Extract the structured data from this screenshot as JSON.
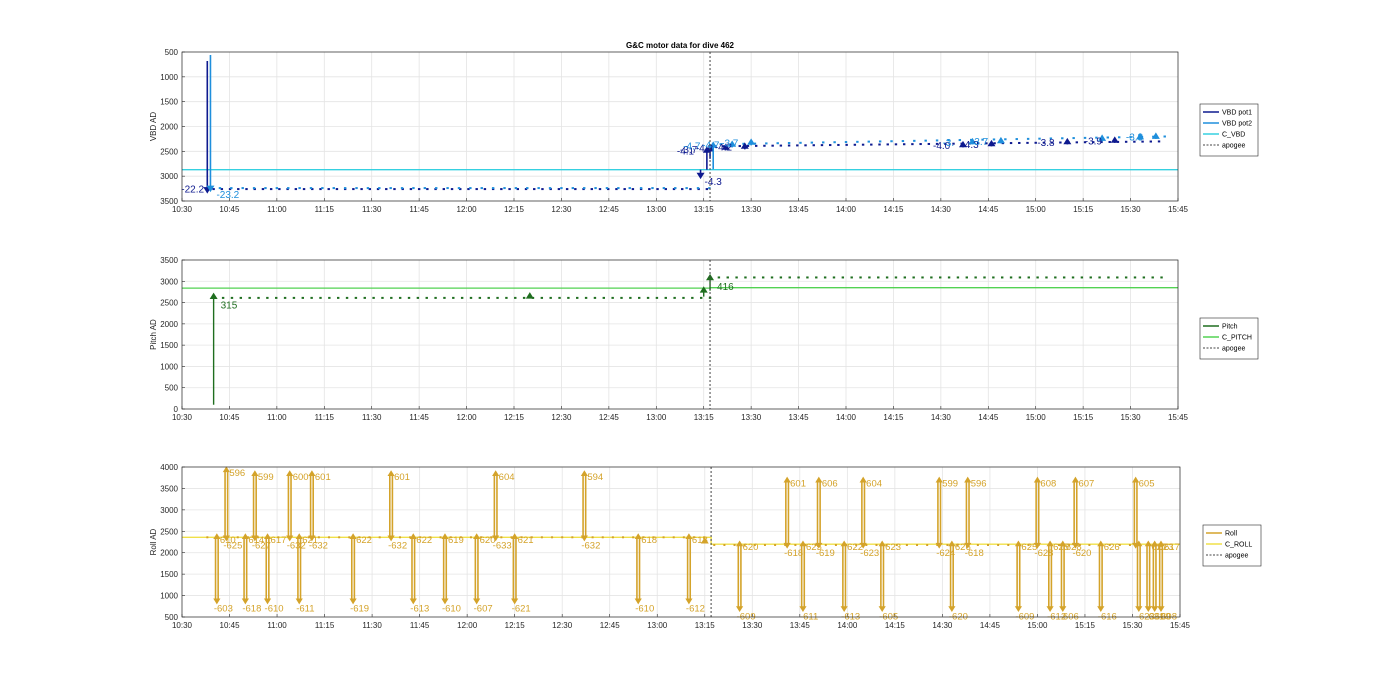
{
  "title": "G&C motor data for dive 462",
  "colors": {
    "vbd_pot1": "#0e1a8f",
    "vbd_pot2": "#1f8fdc",
    "c_vbd": "#35d0e0",
    "pitch": "#1f6e1f",
    "c_pitch": "#52d252",
    "roll": "#d4a32a",
    "c_roll": "#f0e048",
    "apogee": "#444444",
    "grid": "#e4e4e4"
  },
  "chart_data": [
    {
      "type": "line",
      "ylabel": "VBD AD",
      "xlim": [
        "10:30",
        "15:45"
      ],
      "ylim": [
        500,
        3500
      ],
      "y_reversed": true,
      "x_ticks": [
        "10:30",
        "10:45",
        "11:00",
        "11:15",
        "11:30",
        "11:45",
        "12:00",
        "12:15",
        "12:30",
        "12:45",
        "13:00",
        "13:15",
        "13:30",
        "13:45",
        "14:00",
        "14:15",
        "14:30",
        "14:45",
        "15:00",
        "15:15",
        "15:30",
        "15:45"
      ],
      "y_ticks": [
        500,
        1000,
        1500,
        2000,
        2500,
        3000,
        3500
      ],
      "legend": [
        "VBD pot1",
        "VBD pot2",
        "C_VBD",
        "apogee"
      ],
      "apogee": "13:17",
      "c_vbd": [
        {
          "x": "10:30",
          "y": 2870
        },
        {
          "x": "15:45",
          "y": 2870
        }
      ],
      "pot1_points": {
        "x_start": "10:40",
        "x_end": "15:40",
        "step_min": 2.6,
        "y_before_apogee": 3260,
        "y_after_apogee_start": 2400,
        "y_after_apogee_end": 2300
      },
      "pot2_points": {
        "x_start": "10:42",
        "x_end": "15:42",
        "step_min": 3.6,
        "y_before_apogee": 3240,
        "y_after_apogee_start": 2360,
        "y_after_apogee_end": 2200
      },
      "moves": [
        {
          "series": "VBD pot1",
          "x": "10:38",
          "y0": 680,
          "y1": 3270,
          "label": "-22.2"
        },
        {
          "series": "VBD pot2",
          "x": "10:39",
          "y0": 560,
          "y1": 3240,
          "label": "-23.2"
        },
        {
          "series": "VBD pot1",
          "x": "13:14",
          "y0": 2870,
          "y1": 2980,
          "label": "-4.3"
        },
        {
          "series": "VBD pot1",
          "x": "13:16",
          "y0": 2870,
          "y1": 2480,
          "label": "-4.1"
        },
        {
          "series": "VBD pot1",
          "x": "13:17",
          "y0": 2650,
          "y1": 2450,
          "label": "-3.7"
        },
        {
          "series": "VBD pot2",
          "x": "13:18",
          "y0": 2860,
          "y1": 2380,
          "label": "-4.7"
        },
        {
          "series": "VBD pot1",
          "x": "13:22",
          "y0": 2480,
          "y1": 2420,
          "label": "-4.2"
        },
        {
          "series": "VBD pot2",
          "x": "13:24",
          "y0": 2420,
          "y1": 2360,
          "label": "-4.7"
        },
        {
          "series": "VBD pot1",
          "x": "13:28",
          "y0": 2460,
          "y1": 2400,
          "label": "-4.2"
        },
        {
          "series": "VBD pot2",
          "x": "13:30",
          "y0": 2380,
          "y1": 2320,
          "label": "-3.7"
        },
        {
          "series": "VBD pot1",
          "x": "14:37",
          "y0": 2420,
          "y1": 2370,
          "label": "-4.0"
        },
        {
          "series": "VBD pot2",
          "x": "14:40",
          "y0": 2360,
          "y1": 2310,
          "label": "-3."
        },
        {
          "series": "VBD pot1",
          "x": "14:46",
          "y0": 2400,
          "y1": 2350,
          "label": "-4.3"
        },
        {
          "series": "VBD pot2",
          "x": "14:49",
          "y0": 2340,
          "y1": 2290,
          "label": "-3.7"
        },
        {
          "series": "VBD pot1",
          "x": "15:10",
          "y0": 2360,
          "y1": 2310,
          "label": "-3.8"
        },
        {
          "series": "VBD pot2",
          "x": "15:21",
          "y0": 2300,
          "y1": 2240,
          "label": ""
        },
        {
          "series": "VBD pot1",
          "x": "15:25",
          "y0": 2330,
          "y1": 2280,
          "label": "-3.9"
        },
        {
          "series": "VBD pot2",
          "x": "15:33",
          "y0": 2270,
          "y1": 2210,
          "label": ""
        },
        {
          "series": "VBD pot2",
          "x": "15:38",
          "y0": 2250,
          "y1": 2200,
          "label": "-3.8"
        }
      ]
    },
    {
      "type": "line",
      "ylabel": "Pitch AD",
      "xlim": [
        "10:30",
        "15:45"
      ],
      "ylim": [
        0,
        3500
      ],
      "x_ticks": [
        "10:30",
        "10:45",
        "11:00",
        "11:15",
        "11:30",
        "11:45",
        "12:00",
        "12:15",
        "12:30",
        "12:45",
        "13:00",
        "13:15",
        "13:30",
        "13:45",
        "14:00",
        "14:15",
        "14:30",
        "14:45",
        "15:00",
        "15:15",
        "15:30",
        "15:45"
      ],
      "y_ticks": [
        0,
        500,
        1000,
        1500,
        2000,
        2500,
        3000,
        3500
      ],
      "legend": [
        "Pitch",
        "C_PITCH",
        "apogee"
      ],
      "apogee": "13:17",
      "c_pitch": [
        {
          "x": "10:30",
          "y": 2840
        },
        {
          "x": "13:17",
          "y": 2840
        },
        {
          "x": "13:17",
          "y": 2850
        },
        {
          "x": "15:45",
          "y": 2850
        }
      ],
      "pitch_points": {
        "x_start": "10:43",
        "x_end": "15:40",
        "step_min": 2.8,
        "y_before_apogee": 2610,
        "y_after_apogee": 3090
      },
      "moves": [
        {
          "x": "10:40",
          "y0": 100,
          "y1": 2640,
          "label": "315"
        },
        {
          "x": "12:20",
          "y0": 2600,
          "y1": 2650,
          "label": ""
        },
        {
          "x": "13:15",
          "y0": 2640,
          "y1": 2790,
          "label": ""
        },
        {
          "x": "13:17",
          "y0": 2780,
          "y1": 3080,
          "label": "416"
        }
      ]
    },
    {
      "type": "line",
      "ylabel": "Roll AD",
      "xlim": [
        "10:30",
        "15:45"
      ],
      "ylim": [
        500,
        4000
      ],
      "x_ticks": [
        "10:30",
        "10:45",
        "11:00",
        "11:15",
        "11:30",
        "11:45",
        "12:00",
        "12:15",
        "12:30",
        "12:45",
        "13:00",
        "13:15",
        "13:30",
        "13:45",
        "14:00",
        "14:15",
        "14:30",
        "14:45",
        "15:00",
        "15:15",
        "15:30",
        "15:45"
      ],
      "y_ticks": [
        500,
        1000,
        1500,
        2000,
        2500,
        3000,
        3500,
        4000
      ],
      "legend": [
        "Roll",
        "C_ROLL",
        "apogee"
      ],
      "apogee": "13:17",
      "c_roll": [
        {
          "x": "10:30",
          "y": 2360
        },
        {
          "x": "13:17",
          "y": 2360
        },
        {
          "x": "13:17",
          "y": 2200
        },
        {
          "x": "15:45",
          "y": 2200
        }
      ],
      "roll_points": {
        "x_start": "10:38",
        "x_end": "15:42",
        "step_min": 3.2,
        "y_before_apogee": 2360,
        "y_after_apogee": 2180
      },
      "moves": [
        {
          "x": "10:41",
          "y_top": 2370,
          "y_bottom": 880,
          "up_label": "610",
          "down_label": "-603"
        },
        {
          "x": "10:44",
          "y_top": 3930,
          "y_bottom": 2350,
          "up_label": "596",
          "down_label": "-625"
        },
        {
          "x": "10:50",
          "y_top": 2370,
          "y_bottom": 880,
          "up_label": "614",
          "down_label": "-618"
        },
        {
          "x": "10:53",
          "y_top": 3840,
          "y_bottom": 2350,
          "up_label": "599",
          "down_label": "-627"
        },
        {
          "x": "10:57",
          "y_top": 2370,
          "y_bottom": 880,
          "up_label": "617",
          "down_label": "-610"
        },
        {
          "x": "11:04",
          "y_top": 3840,
          "y_bottom": 2350,
          "up_label": "600",
          "down_label": "-632"
        },
        {
          "x": "11:07",
          "y_top": 2370,
          "y_bottom": 880,
          "up_label": "621",
          "down_label": "-611"
        },
        {
          "x": "11:11",
          "y_top": 3840,
          "y_bottom": 2350,
          "up_label": "601",
          "down_label": "-632"
        },
        {
          "x": "11:24",
          "y_top": 2370,
          "y_bottom": 880,
          "up_label": "622",
          "down_label": "-619"
        },
        {
          "x": "11:36",
          "y_top": 3840,
          "y_bottom": 2350,
          "up_label": "601",
          "down_label": "-632"
        },
        {
          "x": "11:43",
          "y_top": 2370,
          "y_bottom": 880,
          "up_label": "622",
          "down_label": "-613"
        },
        {
          "x": "11:53",
          "y_top": 2370,
          "y_bottom": 880,
          "up_label": "619",
          "down_label": "-610"
        },
        {
          "x": "12:03",
          "y_top": 2370,
          "y_bottom": 880,
          "up_label": "620",
          "down_label": "-607"
        },
        {
          "x": "12:09",
          "y_top": 3840,
          "y_bottom": 2350,
          "up_label": "604",
          "down_label": "-633"
        },
        {
          "x": "12:15",
          "y_top": 2370,
          "y_bottom": 880,
          "up_label": "621",
          "down_label": "-621"
        },
        {
          "x": "12:37",
          "y_top": 3840,
          "y_bottom": 2350,
          "up_label": "594",
          "down_label": "-632"
        },
        {
          "x": "12:54",
          "y_top": 2370,
          "y_bottom": 880,
          "up_label": "618",
          "down_label": "-610"
        },
        {
          "x": "13:10",
          "y_top": 2370,
          "y_bottom": 880,
          "up_label": "618",
          "down_label": "-612"
        },
        {
          "x": "13:15",
          "y_top": 2270,
          "y_bottom": 2270,
          "up_label": "",
          "down_label": ""
        },
        {
          "x": "13:26",
          "y_top": 2200,
          "y_bottom": 700,
          "up_label": "620",
          "down_label": "-609"
        },
        {
          "x": "13:41",
          "y_top": 3690,
          "y_bottom": 2180,
          "up_label": "601",
          "down_label": "-618"
        },
        {
          "x": "13:46",
          "y_top": 2200,
          "y_bottom": 700,
          "up_label": "625",
          "down_label": "-611"
        },
        {
          "x": "13:51",
          "y_top": 3690,
          "y_bottom": 2180,
          "up_label": "606",
          "down_label": "-619"
        },
        {
          "x": "13:59",
          "y_top": 2200,
          "y_bottom": 700,
          "up_label": "622",
          "down_label": "-613"
        },
        {
          "x": "14:05",
          "y_top": 3690,
          "y_bottom": 2180,
          "up_label": "604",
          "down_label": "-623"
        },
        {
          "x": "14:11",
          "y_top": 2200,
          "y_bottom": 700,
          "up_label": "623",
          "down_label": "-605"
        },
        {
          "x": "14:29",
          "y_top": 3690,
          "y_bottom": 2180,
          "up_label": "599",
          "down_label": "-624"
        },
        {
          "x": "14:33",
          "y_top": 2200,
          "y_bottom": 700,
          "up_label": "626",
          "down_label": "-620"
        },
        {
          "x": "14:38",
          "y_top": 3690,
          "y_bottom": 2180,
          "up_label": "596",
          "down_label": "-618"
        },
        {
          "x": "14:54",
          "y_top": 2200,
          "y_bottom": 700,
          "up_label": "625",
          "down_label": "-609"
        },
        {
          "x": "15:00",
          "y_top": 3690,
          "y_bottom": 2180,
          "up_label": "608",
          "down_label": "-628"
        },
        {
          "x": "15:04",
          "y_top": 2200,
          "y_bottom": 700,
          "up_label": "625",
          "down_label": "-612"
        },
        {
          "x": "15:08",
          "y_top": 2200,
          "y_bottom": 700,
          "up_label": "628",
          "down_label": "-606"
        },
        {
          "x": "15:12",
          "y_top": 3690,
          "y_bottom": 2180,
          "up_label": "607",
          "down_label": "-620"
        },
        {
          "x": "15:20",
          "y_top": 2200,
          "y_bottom": 700,
          "up_label": "626",
          "down_label": "-616"
        },
        {
          "x": "15:31",
          "y_top": 3690,
          "y_bottom": 2180,
          "up_label": "605",
          "down_label": ""
        },
        {
          "x": "15:32",
          "y_top": 2200,
          "y_bottom": 700,
          "up_label": "",
          "down_label": "-623"
        },
        {
          "x": "15:35",
          "y_top": 2200,
          "y_bottom": 700,
          "up_label": "627",
          "down_label": "-631"
        },
        {
          "x": "15:37",
          "y_top": 2200,
          "y_bottom": 700,
          "up_label": "623",
          "down_label": "-609"
        },
        {
          "x": "15:39",
          "y_top": 2200,
          "y_bottom": 700,
          "up_label": "617",
          "down_label": "-608"
        }
      ]
    }
  ]
}
